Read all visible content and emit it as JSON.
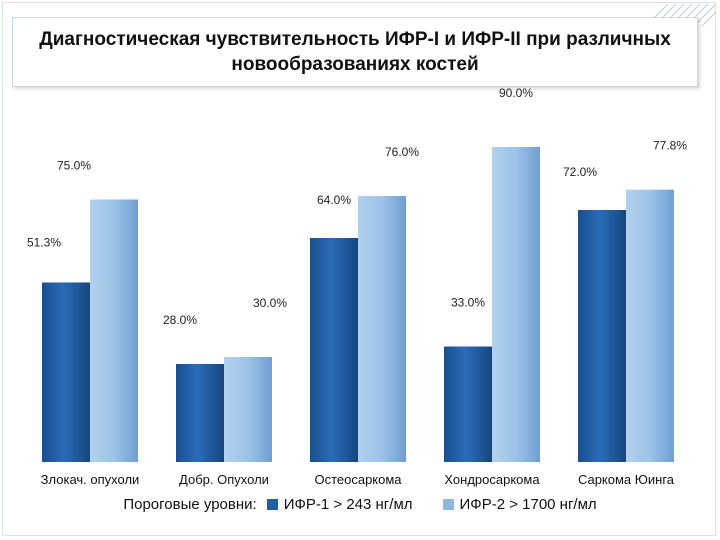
{
  "chart_data": {
    "type": "bar",
    "title": "Диагностическая чувствительность ИФР-I и ИФР-II при различных новообразованиях костей",
    "categories": [
      "Злокач. опухоли",
      "Добр. Опухоли",
      "Остеосаркома",
      "Хондросаркома",
      "Саркома Юинга"
    ],
    "series": [
      {
        "name": "ИФР-1 > 243 нг/мл",
        "values": [
          51.3,
          28.0,
          64.0,
          33.0,
          72.0
        ],
        "labels": [
          "51.3%",
          "28.0%",
          "64.0%",
          "33.0%",
          "72.0%"
        ],
        "color": "#1f5fa8"
      },
      {
        "name": "ИФР-2 > 1700 нг/мл",
        "values": [
          75.0,
          30.0,
          76.0,
          90.0,
          77.8
        ],
        "labels": [
          "75.0%",
          "30.0%",
          "76.0%",
          "90.0%",
          "77.8%"
        ],
        "color": "#8fb8e0"
      }
    ],
    "ylim": [
      0,
      100
    ],
    "grid": false,
    "legend_prefix": "Пороговые уровни:",
    "legend_position": "bottom"
  }
}
